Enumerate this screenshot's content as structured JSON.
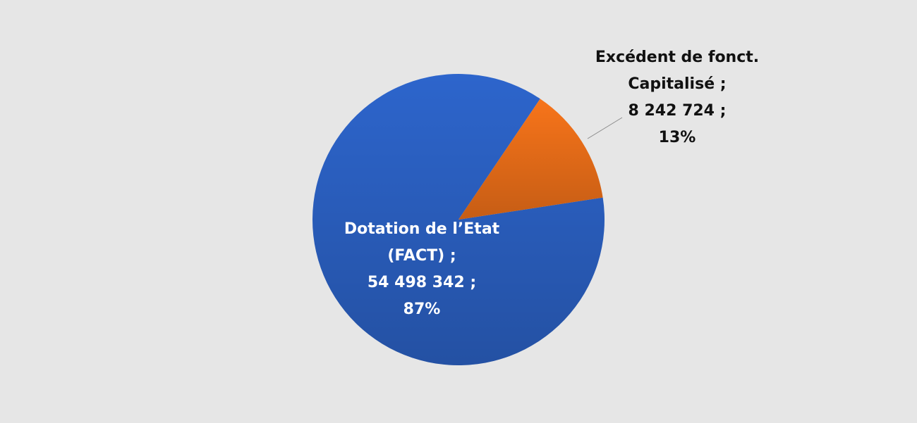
{
  "chart_data": {
    "type": "pie",
    "categories": [
      "Dotation de l’Etat (FACT)",
      "Excédent de fonct. Capitalisé"
    ],
    "values": [
      54498342,
      8242724
    ],
    "value_labels": [
      "54 498 342",
      "8 242 724"
    ],
    "percents": [
      87,
      13
    ],
    "percent_labels": [
      "87%",
      "13%"
    ],
    "separator": ";",
    "colors": [
      "#2d65cc",
      "#f7741a"
    ]
  }
}
